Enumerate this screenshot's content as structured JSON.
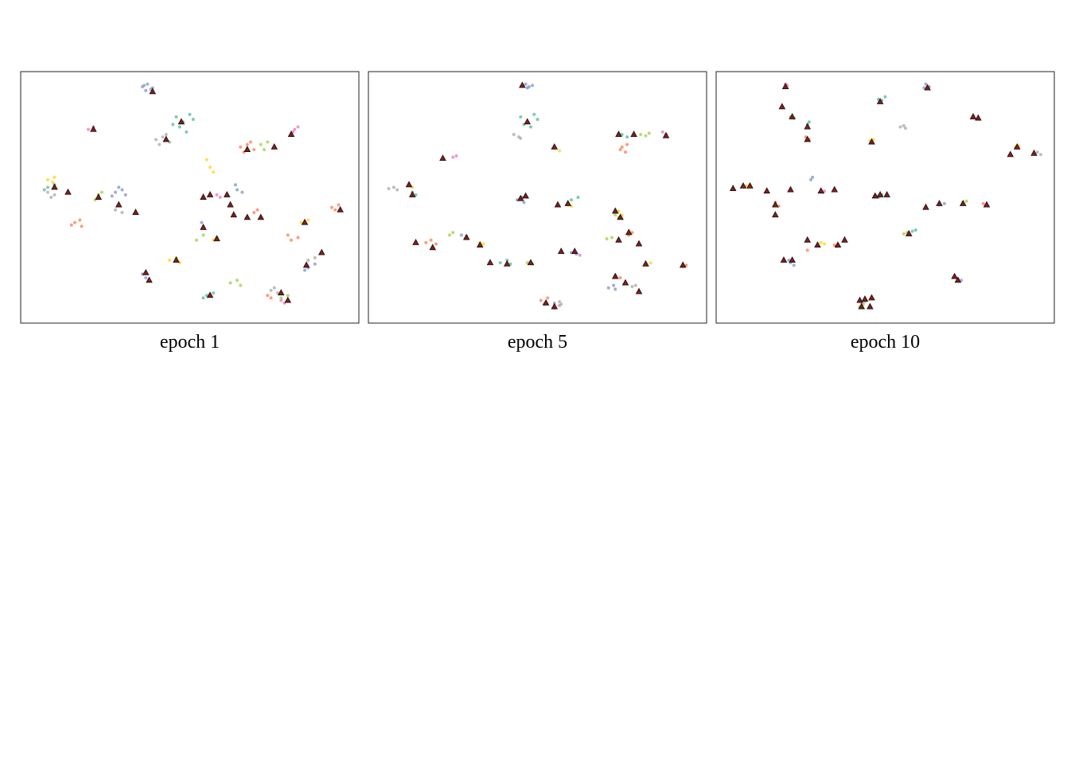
{
  "chart_data": [
    {
      "type": "scatter",
      "title": "epoch 1",
      "xlim": [
        0,
        100
      ],
      "ylim": [
        0,
        100
      ],
      "series": [
        {
          "color": "#8da0cb",
          "x": [
            36,
            37.5,
            38.5,
            37,
            36.5,
            39,
            28,
            30,
            31,
            27,
            29,
            37,
            38,
            36,
            54,
            53.5,
            64,
            65.5,
            63.5,
            85,
            87,
            84
          ],
          "y": [
            94,
            95,
            93,
            92.5,
            94.5,
            93.5,
            52,
            53,
            51,
            50.5,
            54,
            18,
            17,
            19.5,
            38,
            40,
            53,
            52,
            55,
            22,
            23.5,
            21
          ]
        },
        {
          "color": "#66c2a5",
          "x": [
            46,
            48,
            50,
            47,
            49,
            51,
            45,
            55,
            57,
            54,
            8,
            10,
            7
          ],
          "y": [
            82,
            80,
            83,
            78,
            76,
            81,
            79,
            11,
            12,
            10,
            54,
            55,
            53
          ]
        },
        {
          "color": "#fc8d62",
          "x": [
            65,
            67,
            69,
            66,
            68,
            16,
            17.5,
            15,
            18,
            92,
            94,
            93,
            80,
            82,
            79,
            69,
            70,
            74,
            73
          ],
          "y": [
            70,
            71,
            69,
            68,
            72,
            40,
            41,
            39,
            38.5,
            46,
            47,
            45,
            33,
            34,
            35,
            44,
            45,
            10,
            11
          ]
        },
        {
          "color": "#a6d854",
          "x": [
            71,
            73,
            75,
            72,
            23,
            24,
            22,
            62,
            64,
            65,
            77,
            79,
            52,
            54
          ],
          "y": [
            71,
            72,
            70,
            69,
            51,
            52,
            49,
            16,
            17,
            15,
            10,
            11,
            33,
            35
          ]
        },
        {
          "color": "#ffd92f",
          "x": [
            55,
            56,
            57,
            8,
            10,
            9.5,
            44,
            46,
            47,
            83,
            85,
            57,
            58
          ],
          "y": [
            65,
            62,
            60,
            57,
            58,
            56,
            25,
            26,
            24,
            40,
            41,
            33,
            34
          ]
        },
        {
          "color": "#e78ac3",
          "x": [
            81,
            82,
            80.5,
            20,
            21.5,
            77,
            78,
            58,
            59
          ],
          "y": [
            77,
            78,
            76,
            77,
            78,
            9,
            8,
            51,
            50
          ]
        },
        {
          "color": "#b3b3b3",
          "x": [
            40,
            42,
            44,
            41,
            43,
            8,
            10,
            7,
            9,
            74,
            76,
            75,
            85,
            87,
            28,
            30
          ],
          "y": [
            73,
            74,
            72,
            71,
            75,
            52,
            51,
            53,
            50,
            13,
            12,
            14,
            25,
            26,
            45,
            44
          ]
        },
        {
          "color": "#8b1a1a",
          "marker": "triangle",
          "x": [
            39,
            21.5,
            43,
            47.5,
            10,
            14,
            23,
            34,
            29,
            67,
            61,
            54,
            56,
            62,
            54,
            58,
            63,
            67,
            71,
            75,
            80,
            84,
            89,
            94.5,
            38,
            37,
            46,
            56,
            77,
            79,
            84.5
          ],
          "y": [
            92,
            77,
            73,
            80,
            54,
            52,
            50,
            44,
            47,
            69,
            51,
            50,
            51,
            47,
            38,
            33.5,
            43,
            42,
            42,
            70,
            75,
            40,
            28,
            45,
            17,
            20,
            25,
            11,
            12,
            9,
            23
          ]
        }
      ]
    },
    {
      "type": "scatter",
      "title": "epoch 5",
      "xlim": [
        0,
        100
      ],
      "ylim": [
        0,
        100
      ],
      "series": [
        {
          "color": "#8da0cb",
          "x": [
            46.5,
            47.5,
            48.5,
            47,
            44,
            45.5,
            46,
            71,
            72.5,
            73,
            60,
            61.5,
            27.5,
            29
          ],
          "y": [
            95,
            94,
            94.5,
            93.5,
            49,
            50,
            48,
            14,
            15,
            13.5,
            28,
            27.5,
            35,
            34.5
          ]
        },
        {
          "color": "#66c2a5",
          "x": [
            45,
            47,
            49,
            46,
            48,
            50,
            39,
            41,
            42,
            75,
            76.5,
            13,
            14,
            60,
            62
          ],
          "y": [
            82,
            80,
            83,
            79,
            78,
            81,
            24,
            25,
            23.5,
            75,
            74,
            52,
            51,
            49,
            50
          ]
        },
        {
          "color": "#fc8d62",
          "x": [
            75,
            76.5,
            74.5,
            76,
            17,
            18.5,
            20,
            51,
            53,
            52,
            77,
            78,
            93,
            94,
            73,
            74.5
          ],
          "y": [
            70,
            71,
            69,
            68,
            32,
            33,
            31.5,
            9,
            10,
            7.5,
            35,
            36,
            22.5,
            23,
            19,
            18
          ]
        },
        {
          "color": "#a6d854",
          "x": [
            80.5,
            82,
            83,
            24,
            25,
            47,
            48.5,
            73,
            74,
            70.5,
            72
          ],
          "y": [
            75,
            74.5,
            75.5,
            35,
            36,
            24,
            23.5,
            43,
            42,
            33.5,
            34
          ]
        },
        {
          "color": "#ffd92f",
          "x": [
            55,
            56.5,
            12,
            13,
            59,
            60,
            82,
            83.5,
            33,
            34,
            74,
            75
          ],
          "y": [
            70,
            68.5,
            55,
            54,
            47,
            46.5,
            23,
            24,
            32,
            31.5,
            44.5,
            43
          ]
        },
        {
          "color": "#e78ac3",
          "x": [
            87,
            88,
            25,
            26,
            61,
            62.5,
            55,
            56.5
          ],
          "y": [
            76,
            75,
            66,
            66.5,
            28,
            27,
            6,
            7
          ]
        },
        {
          "color": "#b3b3b3",
          "x": [
            43,
            44.5,
            45,
            6,
            7.5,
            8.5,
            55,
            56.5,
            57,
            78,
            79
          ],
          "y": [
            75,
            74,
            73.5,
            53.5,
            54,
            53,
            8,
            8.5,
            7.5,
            14.5,
            15
          ]
        },
        {
          "color": "#8b1a1a",
          "marker": "triangle",
          "x": [
            45.5,
            47,
            22,
            55,
            74,
            78.5,
            88,
            12,
            13,
            45,
            46.5,
            56,
            59,
            73,
            74.5,
            77,
            80,
            74,
            61,
            29,
            33,
            14,
            19,
            36,
            41,
            48,
            57,
            76,
            80,
            73,
            93,
            82,
            52.5,
            55
          ],
          "y": [
            94.5,
            80,
            65.5,
            70,
            75,
            75,
            74.5,
            55,
            51,
            49.5,
            50.5,
            47,
            47.5,
            44.5,
            42,
            36,
            31.5,
            33,
            28.5,
            34,
            31,
            32,
            30,
            24,
            23.5,
            24,
            28.5,
            16,
            12.5,
            18.5,
            23,
            23.5,
            8,
            6.5
          ]
        }
      ]
    },
    {
      "type": "scatter",
      "title": "epoch 10",
      "xlim": [
        0,
        100
      ],
      "ylim": [
        0,
        100
      ],
      "series": [
        {
          "color": "#8da0cb",
          "x": [
            62,
            63,
            61.5,
            22,
            23,
            21.5,
            28,
            28.5,
            71.5,
            72.5,
            66,
            67.5
          ],
          "y": [
            95,
            94,
            93.5,
            24,
            23,
            25,
            57,
            58,
            17.5,
            17,
            47,
            47.5
          ]
        },
        {
          "color": "#66c2a5",
          "x": [
            48,
            49,
            50,
            47.5,
            48,
            49,
            58,
            59,
            27,
            27.5
          ],
          "y": [
            89,
            88.5,
            90,
            50.5,
            50,
            51,
            36.5,
            37,
            79,
            80
          ]
        },
        {
          "color": "#fc8d62",
          "x": [
            26.5,
            27.5,
            17.5,
            18.5,
            79,
            80,
            35,
            35.7,
            27
          ],
          "y": [
            74,
            73,
            48,
            46.5,
            47.5,
            47,
            31,
            30.5,
            29
          ]
        },
        {
          "color": "#a6d854",
          "x": [
            73,
            74,
            22,
            23,
            42.5,
            43.5,
            55.5,
            56.5
          ],
          "y": [
            48,
            48.5,
            82,
            81.5,
            6.5,
            7.5,
            35.5,
            36
          ]
        },
        {
          "color": "#ffd92f",
          "x": [
            45.5,
            46.5,
            88.5,
            89.5,
            9,
            10,
            31,
            32
          ],
          "y": [
            72.5,
            73,
            70,
            70.5,
            54.5,
            55,
            32,
            31.5
          ]
        },
        {
          "color": "#e78ac3",
          "x": [
            20.5,
            21,
            19.5,
            31.5,
            32
          ],
          "y": [
            95,
            94.5,
            86,
            52,
            52.5
          ]
        },
        {
          "color": "#b3b3b3",
          "x": [
            54.5,
            55.5,
            56,
            94,
            95,
            96,
            43,
            44
          ],
          "y": [
            78,
            78.5,
            77.5,
            67.5,
            68,
            67,
            8,
            8.5
          ]
        },
        {
          "color": "#8b1a1a",
          "marker": "triangle",
          "x": [
            20.5,
            19.5,
            22.5,
            27,
            27,
            48.5,
            62.5,
            76,
            77.5,
            46,
            89,
            94,
            87,
            5,
            8,
            10,
            15,
            17.5,
            17.5,
            22,
            31,
            35,
            47,
            48.5,
            50.5,
            62,
            66,
            73,
            80,
            57,
            27,
            20,
            22.5,
            30,
            36,
            38,
            70.5,
            71.5,
            42.5,
            44,
            46,
            43,
            45.5
          ],
          "y": [
            94,
            86,
            82,
            78,
            73,
            88,
            93.5,
            82,
            81.5,
            72,
            70,
            67.5,
            67,
            53.5,
            54.5,
            54.5,
            52.5,
            47,
            43,
            53,
            52.5,
            53,
            50.5,
            51,
            51,
            46,
            47.5,
            47.5,
            47,
            35.5,
            33,
            25,
            25,
            31,
            31,
            33,
            18.5,
            17,
            9,
            9.5,
            10,
            6.5,
            6.5
          ]
        }
      ]
    }
  ]
}
